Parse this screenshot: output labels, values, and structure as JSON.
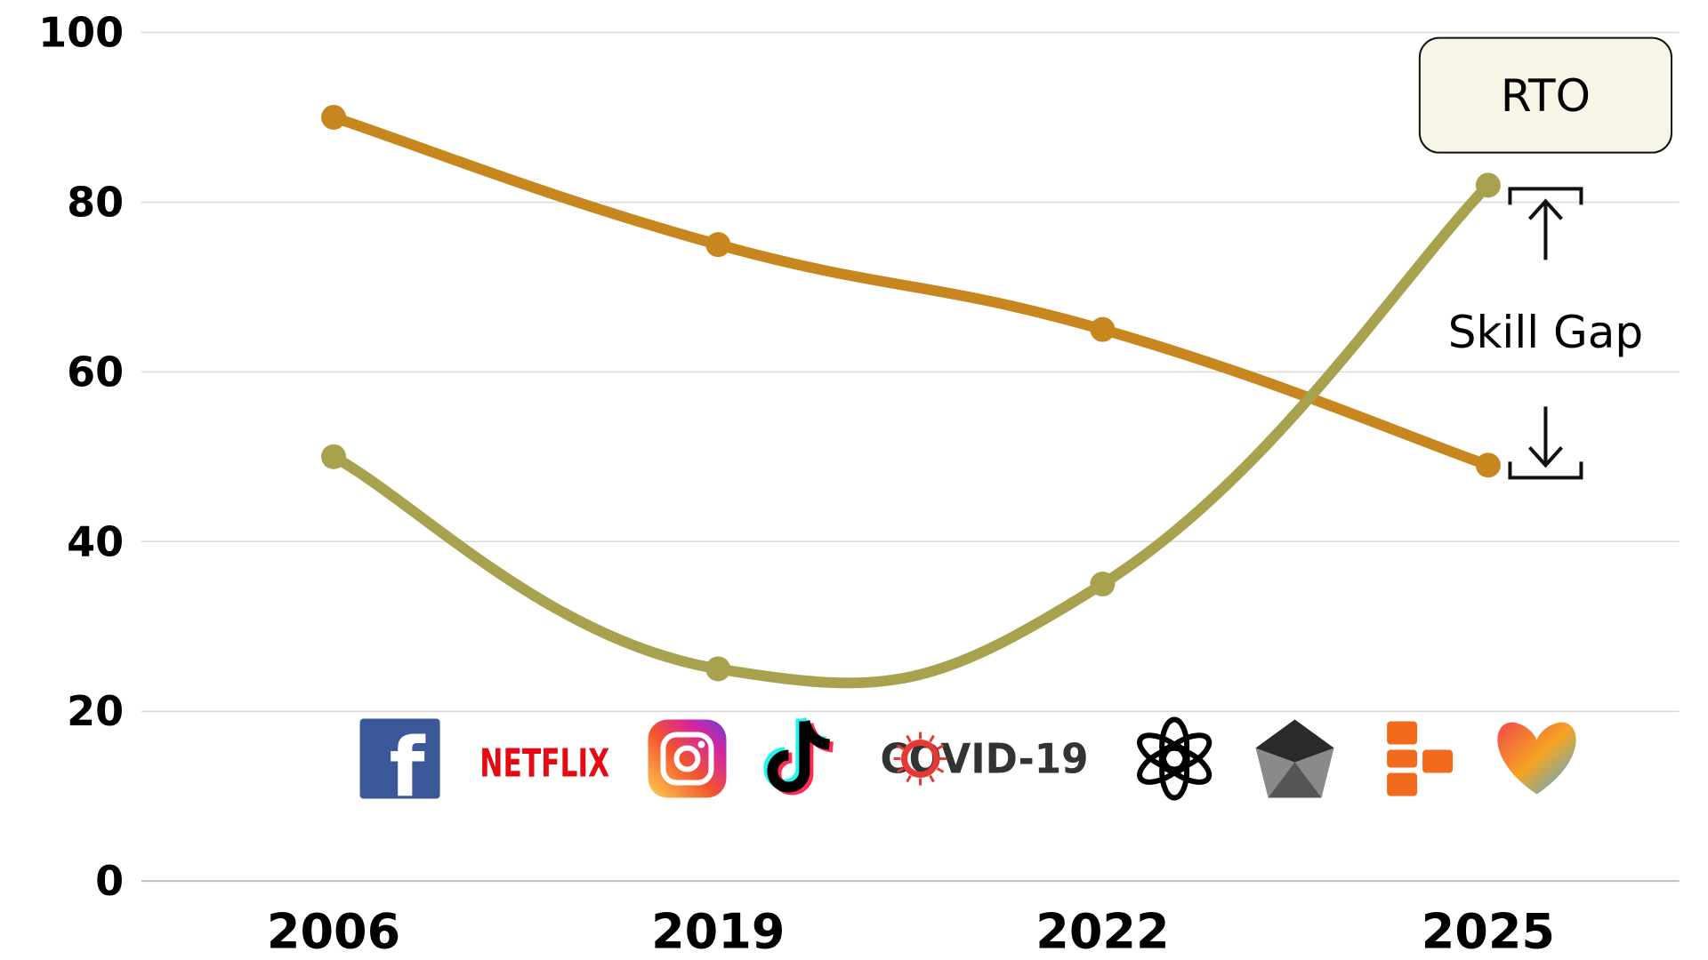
{
  "chart_data": {
    "type": "line",
    "categories": [
      "2006",
      "2019",
      "2022",
      "2025"
    ],
    "series": [
      {
        "values": [
          90,
          75,
          65,
          49
        ],
        "color": "#c8861e"
      },
      {
        "values": [
          50,
          25,
          35,
          82
        ],
        "color": "#a8a24e"
      }
    ],
    "ylim": [
      0,
      100
    ],
    "yticks": [
      0,
      20,
      40,
      60,
      80,
      100
    ],
    "grid": true,
    "annotations": {
      "callout_label": "RTO",
      "gap_label": "Skill Gap",
      "gap_range": [
        49,
        82
      ],
      "gap_category": "2025"
    },
    "logos": [
      {
        "name": "facebook-icon",
        "label": "f",
        "color": "#3b5998"
      },
      {
        "name": "netflix-icon",
        "label": "NETFLIX",
        "color": "#e50914"
      },
      {
        "name": "instagram-icon",
        "label": "",
        "color": "#d6249f"
      },
      {
        "name": "tiktok-icon",
        "label": "♪",
        "color": "#000000"
      },
      {
        "name": "covid-icon",
        "label": "COVID-19",
        "color": "#333333"
      },
      {
        "name": "openai-icon",
        "label": "",
        "color": "#000000"
      },
      {
        "name": "gem-icon",
        "label": "",
        "color": "#555555"
      },
      {
        "name": "orange-blocks-icon",
        "label": "",
        "color": "#f26b1d"
      },
      {
        "name": "heart-icon",
        "label": "",
        "color": "#f0a030"
      }
    ]
  }
}
